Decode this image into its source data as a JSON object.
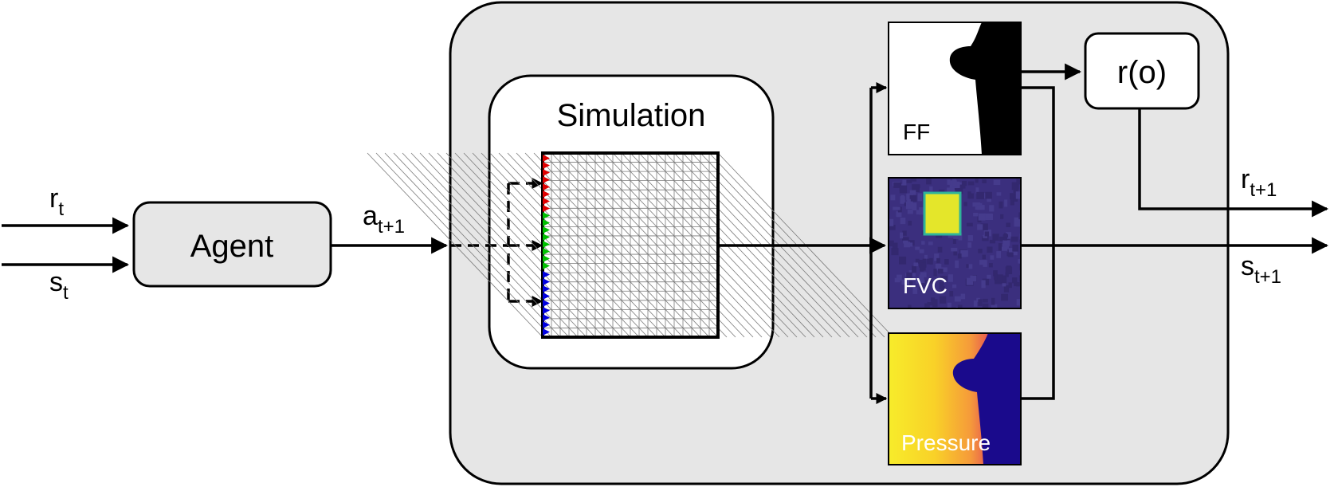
{
  "inputs": {
    "reward": {
      "base": "r",
      "subscript": "t"
    },
    "state": {
      "base": "s",
      "subscript": "t"
    }
  },
  "agent": {
    "label": "Agent"
  },
  "action": {
    "base": "a",
    "subscript": "t+1"
  },
  "simulation": {
    "title": "Simulation"
  },
  "observations": {
    "ff": {
      "label": "FF"
    },
    "fvc": {
      "label": "FVC"
    },
    "pressure": {
      "label": "Pressure"
    }
  },
  "reward_function": {
    "label": "r(o)"
  },
  "outputs": {
    "reward": {
      "base": "r",
      "subscript": "t+1"
    },
    "state": {
      "base": "s",
      "subscript": "t+1"
    }
  },
  "colors": {
    "env_fill": "#e6e6e6",
    "agent_fill": "#e6e6e6",
    "fvc_background": "#3b2f7e",
    "fvc_patch": "#e4e62a",
    "pressure_low": "#1a0a8c",
    "pressure_high": "#f7ec2a",
    "inlet_red": "#e00000",
    "inlet_green": "#00c000",
    "inlet_blue": "#0000e0"
  }
}
